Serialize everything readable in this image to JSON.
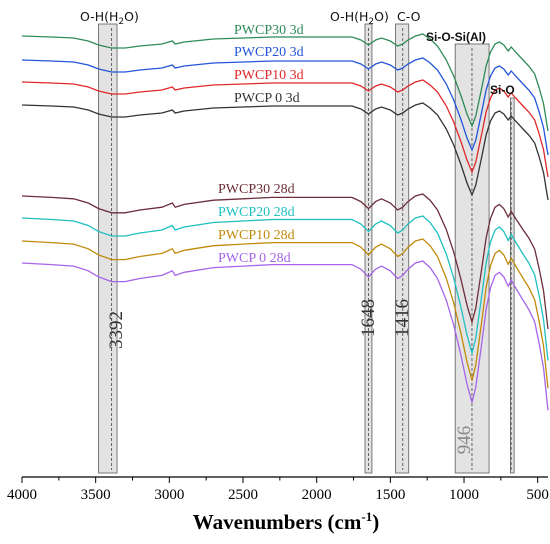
{
  "chart_data": {
    "type": "line",
    "xlabel": "Wavenumbers (cm",
    "xlabel_sup": "-1",
    "xlabel_close": ")",
    "xlim": [
      4000,
      430
    ],
    "x_reversed": true,
    "xticks": [
      4000,
      3500,
      3000,
      2500,
      2000,
      1500,
      1000,
      500
    ],
    "y_axis_shown": false,
    "grid": false,
    "legend": "inline text labels placed above each curve",
    "bands": [
      {
        "label": "O-H(H",
        "sub": "2",
        "close": "O)",
        "center": 3392,
        "from": 3480,
        "to": 3355,
        "peak_label": "3392"
      },
      {
        "label": "O-H(H",
        "sub": "2",
        "close": "O)",
        "center": 1648,
        "from": 1672,
        "to": 1625,
        "peak_label": "1648"
      },
      {
        "label": "C-O",
        "center": 1416,
        "from": 1465,
        "to": 1375,
        "peak_label": "1416"
      },
      {
        "label": "Si-O-Si(Al)",
        "center": 946,
        "from": 1060,
        "to": 830,
        "peak_label": "946"
      },
      {
        "label": "Si-O",
        "center": 680,
        "from": 685,
        "to": 660,
        "peak_label": ""
      }
    ],
    "series": [
      {
        "name": "PWCP30 3d",
        "color": "#2e8b57"
      },
      {
        "name": "PWCP20 3d",
        "color": "#2355d8"
      },
      {
        "name": "PWCP10 3d",
        "color": "#e0282a"
      },
      {
        "name": "PWCP 0  3d",
        "color": "#333333"
      },
      {
        "name": "PWCP30 28d",
        "color": "#6b2e3a"
      },
      {
        "name": "PWCP20 28d",
        "color": "#1fc0c0"
      },
      {
        "name": "PWCP10 28d",
        "color": "#c08a0a"
      },
      {
        "name": "PWCP 0  28d",
        "color": "#a565e8"
      }
    ]
  }
}
